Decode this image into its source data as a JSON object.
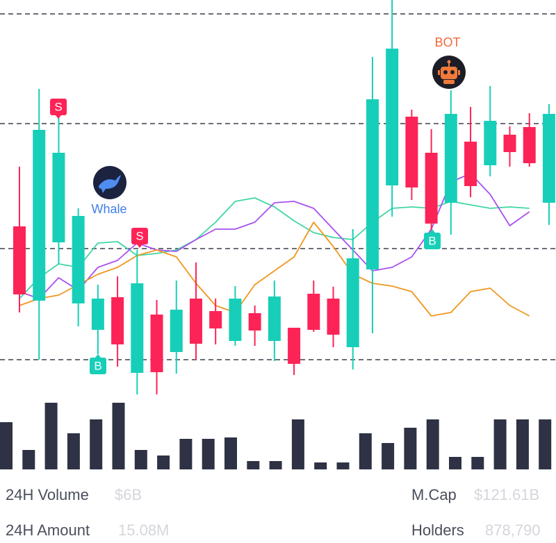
{
  "chart_data": {
    "type": "candlestick",
    "ylim": [
      0,
      580
    ],
    "candles": {
      "open": [
        254,
        147,
        231,
        143,
        105,
        152,
        43,
        127,
        73,
        150,
        132,
        89,
        129,
        89,
        108,
        157,
        150,
        80,
        192,
        313,
        412,
        360,
        288,
        376,
        342,
        386,
        397,
        288
      ],
      "high": [
        340,
        452,
        410,
        280,
        170,
        182,
        220,
        148,
        176,
        202,
        150,
        168,
        140,
        176,
        108,
        176,
        167,
        250,
        498,
        580,
        422,
        394,
        450,
        426,
        456,
        398,
        417,
        430
      ],
      "low": [
        130,
        62,
        200,
        110,
        70,
        52,
        12,
        12,
        42,
        62,
        84,
        82,
        82,
        60,
        40,
        102,
        80,
        48,
        100,
        268,
        292,
        244,
        242,
        296,
        326,
        340,
        340,
        256
      ],
      "close": [
        156,
        393,
        360,
        269,
        150,
        84,
        172,
        44,
        134,
        85,
        107,
        150,
        104,
        153,
        56,
        105,
        98,
        208,
        437,
        510,
        310,
        258,
        416,
        312,
        406,
        361,
        345,
        416
      ]
    },
    "up_color": "#17cfb8",
    "down_color": "#fc2457",
    "series": [
      {
        "color": "#3fd6a4",
        "values": [
          150,
          180,
          200,
          195,
          230,
          232,
          212,
          215,
          220,
          235,
          260,
          290,
          295,
          282,
          262,
          245,
          238,
          235,
          260,
          280,
          282,
          280,
          290,
          285,
          280,
          282,
          280
        ]
      },
      {
        "color": "#a94ff0",
        "values": [
          160,
          150,
          180,
          162,
          195,
          205,
          230,
          220,
          218,
          235,
          250,
          250,
          260,
          288,
          290,
          280,
          250,
          220,
          190,
          195,
          210,
          250,
          318,
          330,
          300,
          255,
          275
        ]
      },
      {
        "color": "#f0961e",
        "values": [
          140,
          150,
          155,
          170,
          185,
          195,
          212,
          220,
          210,
          172,
          140,
          130,
          170,
          190,
          210,
          260,
          225,
          185,
          172,
          168,
          160,
          125,
          130,
          160,
          165,
          140,
          125
        ]
      }
    ],
    "volume": {
      "color": "#2e3244",
      "ylim": [
        0,
        100
      ],
      "values": [
        68,
        28,
        96,
        52,
        72,
        96,
        28,
        20,
        44,
        44,
        46,
        12,
        12,
        72,
        10,
        10,
        52,
        38,
        60,
        72,
        18,
        18,
        72,
        72,
        72
      ]
    },
    "markers": [
      "S",
      "S",
      "B",
      "B"
    ],
    "whale_label": "Whale",
    "bot_label": "BOT"
  },
  "stats": [
    {
      "label": "24H Volume",
      "value": "$6B"
    },
    {
      "label": "M.Cap",
      "value": "$121.61B"
    },
    {
      "label": "24H Amount",
      "value": "15.08M"
    },
    {
      "label": "Holders",
      "value": "878,790"
    }
  ]
}
